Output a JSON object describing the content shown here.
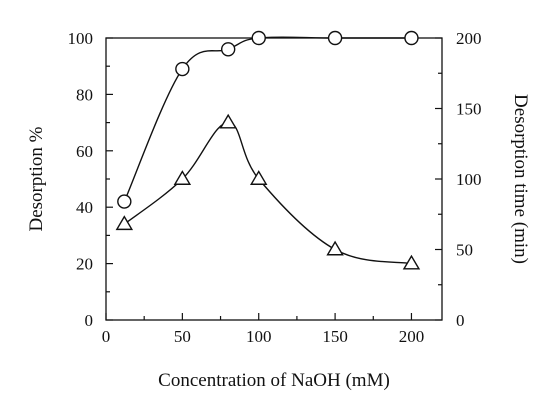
{
  "chart_data": {
    "type": "scatter",
    "xlabel": "Concentration of NaOH (mM)",
    "ylabel": "Desorption %",
    "y2label": "Desorption time (min)",
    "xlim": [
      0,
      220
    ],
    "ylim": [
      0,
      100
    ],
    "y2lim": [
      0,
      200
    ],
    "xticks": [
      0,
      50,
      100,
      150,
      200
    ],
    "yticks": [
      0,
      20,
      40,
      60,
      80,
      100
    ],
    "y2ticks": [
      0,
      50,
      100,
      150,
      200
    ],
    "grid": false,
    "series": [
      {
        "axis": "left",
        "marker": "circle",
        "x": [
          12,
          50,
          80,
          100,
          150,
          200
        ],
        "y": [
          42,
          89,
          96,
          100,
          100,
          100
        ]
      },
      {
        "axis": "right",
        "marker": "triangle",
        "x": [
          12,
          50,
          80,
          100,
          150,
          200
        ],
        "y": [
          68,
          100,
          140,
          100,
          50,
          40
        ]
      }
    ]
  }
}
